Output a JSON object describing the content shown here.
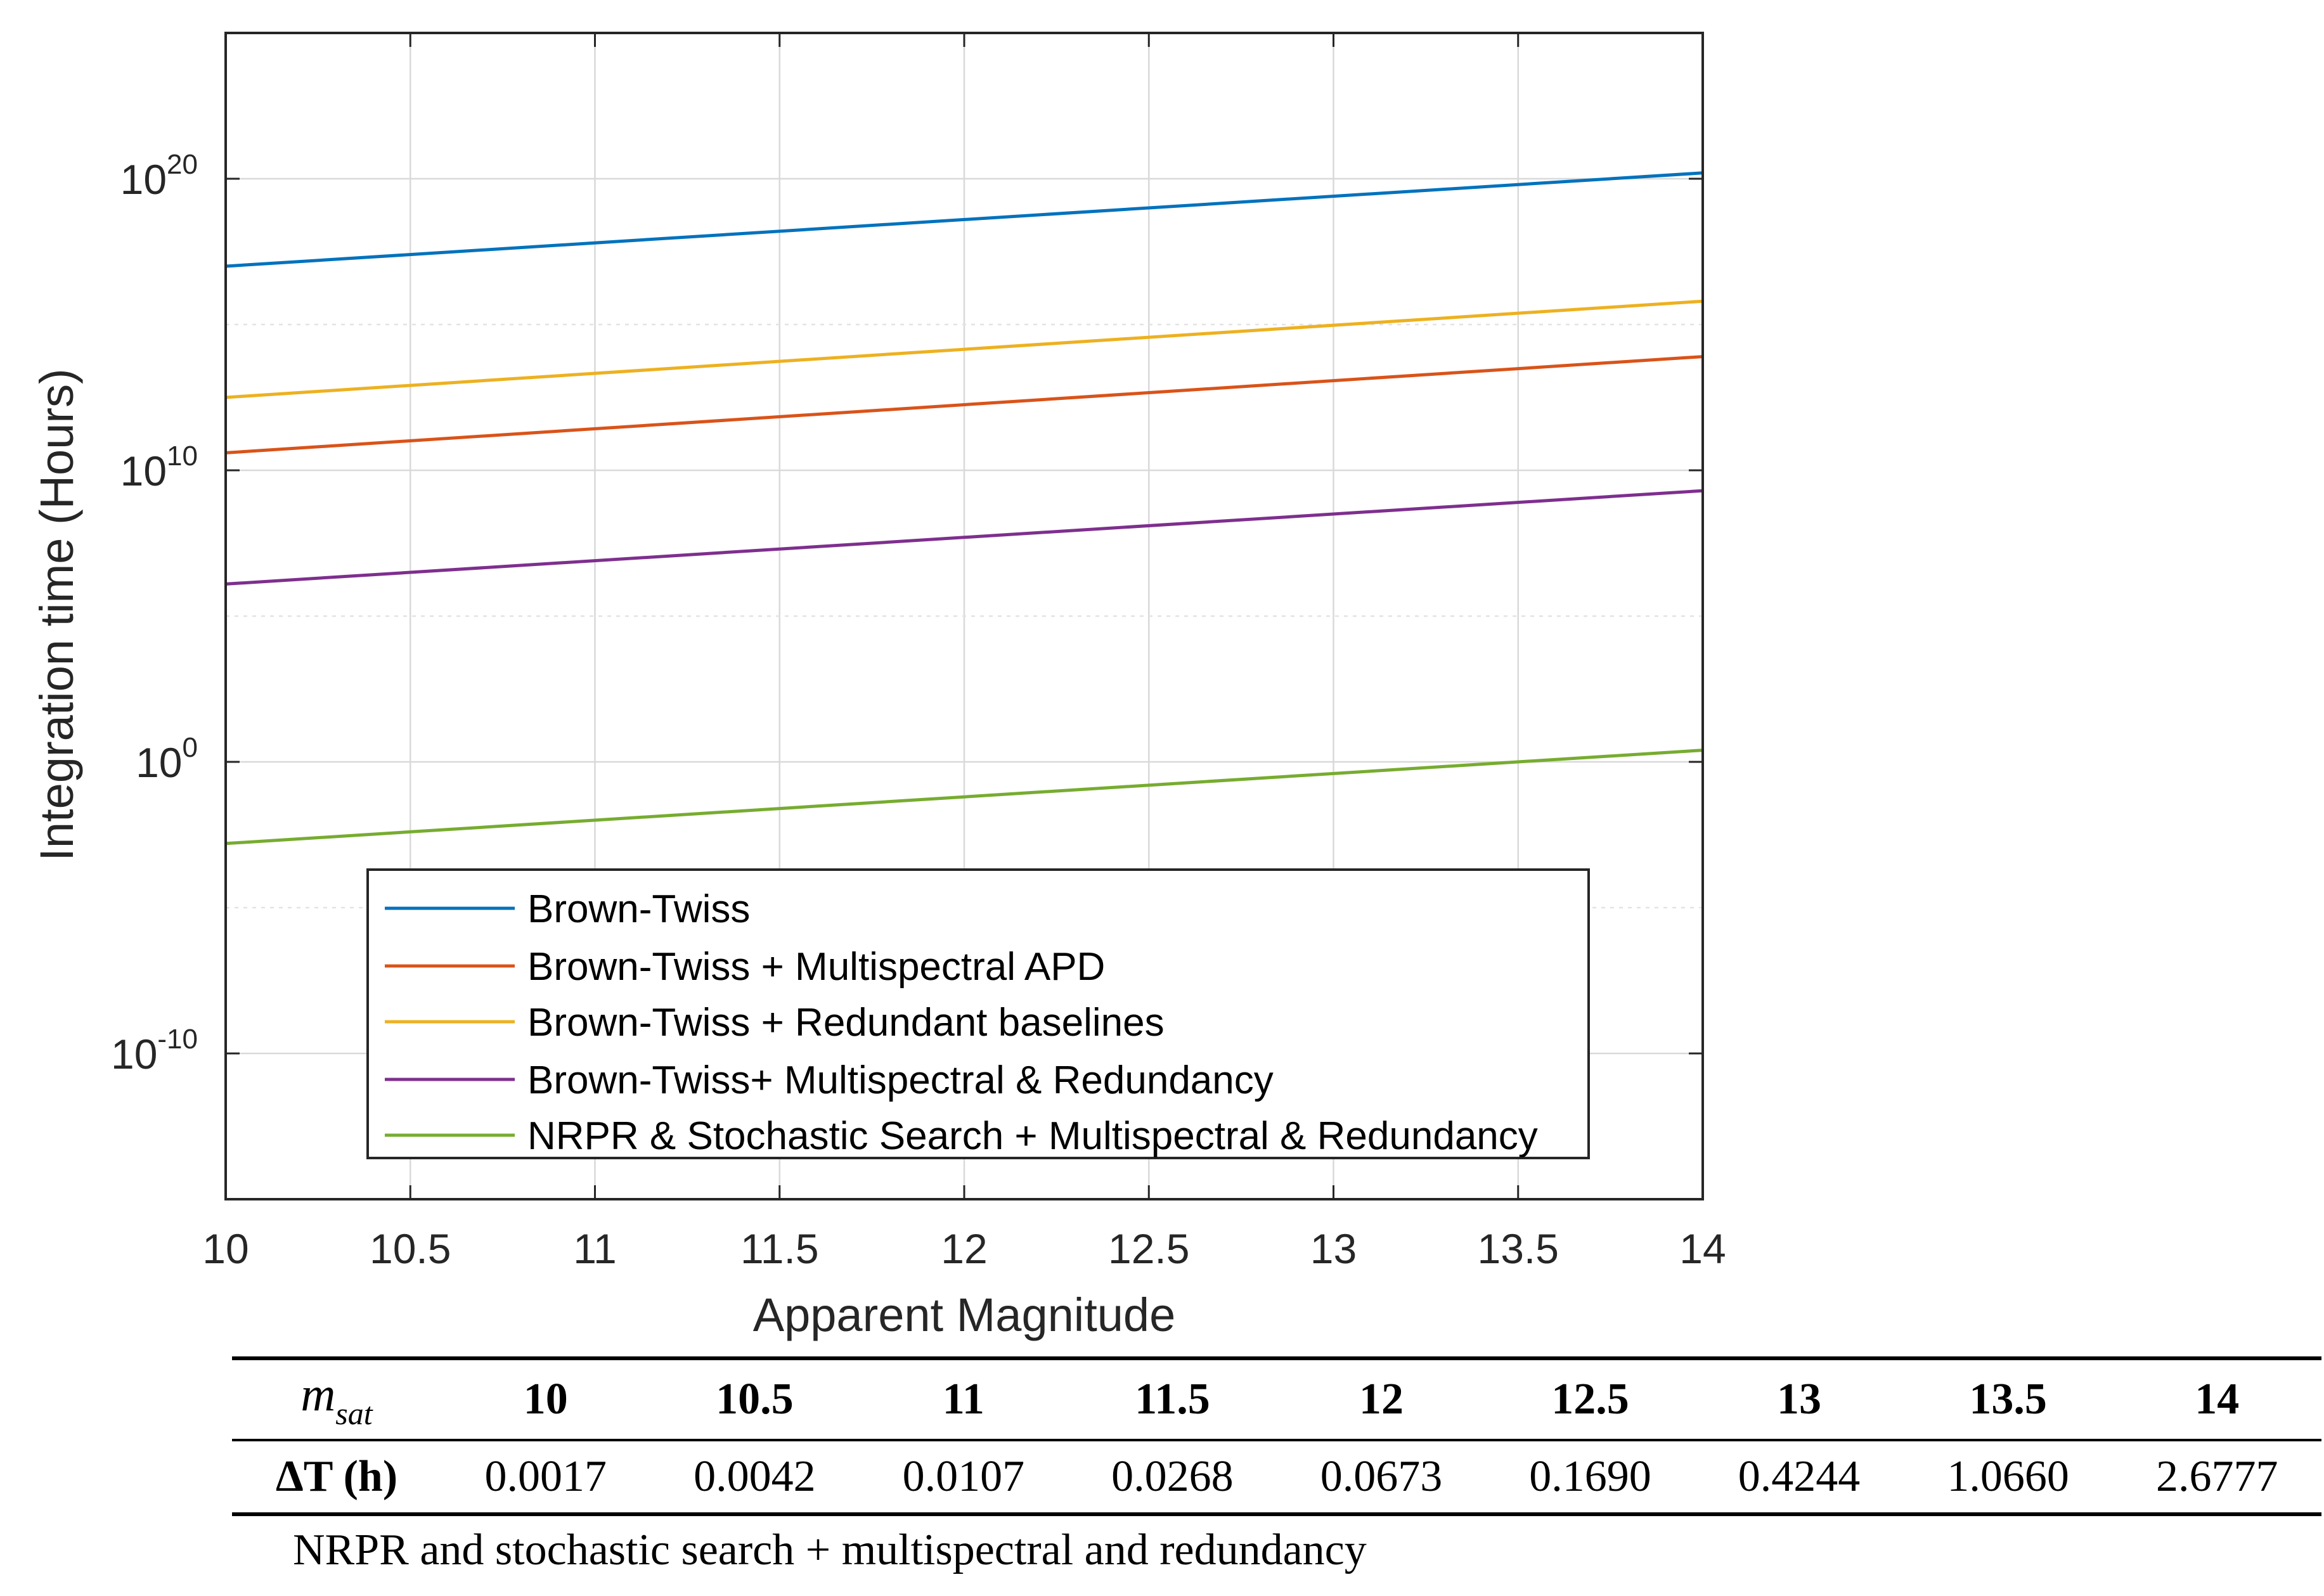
{
  "chart_data": {
    "type": "line",
    "title": "",
    "xlabel": "Apparent Magnitude",
    "ylabel": "Integration time (Hours)",
    "y_scale": "log",
    "xlim": [
      10,
      14
    ],
    "ylim_log10": [
      -15,
      25
    ],
    "grid": true,
    "x_ticks": [
      10,
      10.5,
      11,
      11.5,
      12,
      12.5,
      13,
      13.5,
      14
    ],
    "x_tick_labels": [
      "10",
      "10.5",
      "11",
      "11.5",
      "12",
      "12.5",
      "13",
      "13.5",
      "14"
    ],
    "y_ticks_log10": [
      -10,
      0,
      10,
      20
    ],
    "y_tick_labels": [
      {
        "base": "10",
        "exp": "-10"
      },
      {
        "base": "10",
        "exp": "0"
      },
      {
        "base": "10",
        "exp": "10"
      },
      {
        "base": "10",
        "exp": "20"
      }
    ],
    "legend_position": "bottom-left",
    "series": [
      {
        "name": "Brown-Twiss",
        "color": "#0072BD",
        "x": [
          10,
          14
        ],
        "log10_y": [
          17,
          20.2
        ]
      },
      {
        "name": "Brown-Twiss + Multispectral APD",
        "color": "#D95319",
        "x": [
          10,
          14
        ],
        "log10_y": [
          10.6,
          13.9
        ]
      },
      {
        "name": "Brown-Twiss + Redundant baselines",
        "color": "#EDB120",
        "x": [
          10,
          14
        ],
        "log10_y": [
          12.5,
          15.8
        ]
      },
      {
        "name": "Brown-Twiss+ Multispectral & Redundancy",
        "color": "#7E2F8E",
        "x": [
          10,
          14
        ],
        "log10_y": [
          6.1,
          9.3
        ]
      },
      {
        "name": "NRPR & Stochastic Search + Multispectral & Redundancy",
        "color": "#77AC30",
        "x": [
          10,
          14
        ],
        "log10_y": [
          -2.8,
          0.4
        ]
      }
    ]
  },
  "table": {
    "row1_label_main": "m",
    "row1_label_sub": "sat",
    "row2_label": "ΔT (h)",
    "magnitudes": [
      "10",
      "10.5",
      "11",
      "11.5",
      "12",
      "12.5",
      "13",
      "13.5",
      "14"
    ],
    "delta_t": [
      "0.0017",
      "0.0042",
      "0.0107",
      "0.0268",
      "0.0673",
      "0.1690",
      "0.4244",
      "1.0660",
      "2.6777"
    ],
    "caption": "NRPR and stochastic search + multispectral and redundancy"
  }
}
